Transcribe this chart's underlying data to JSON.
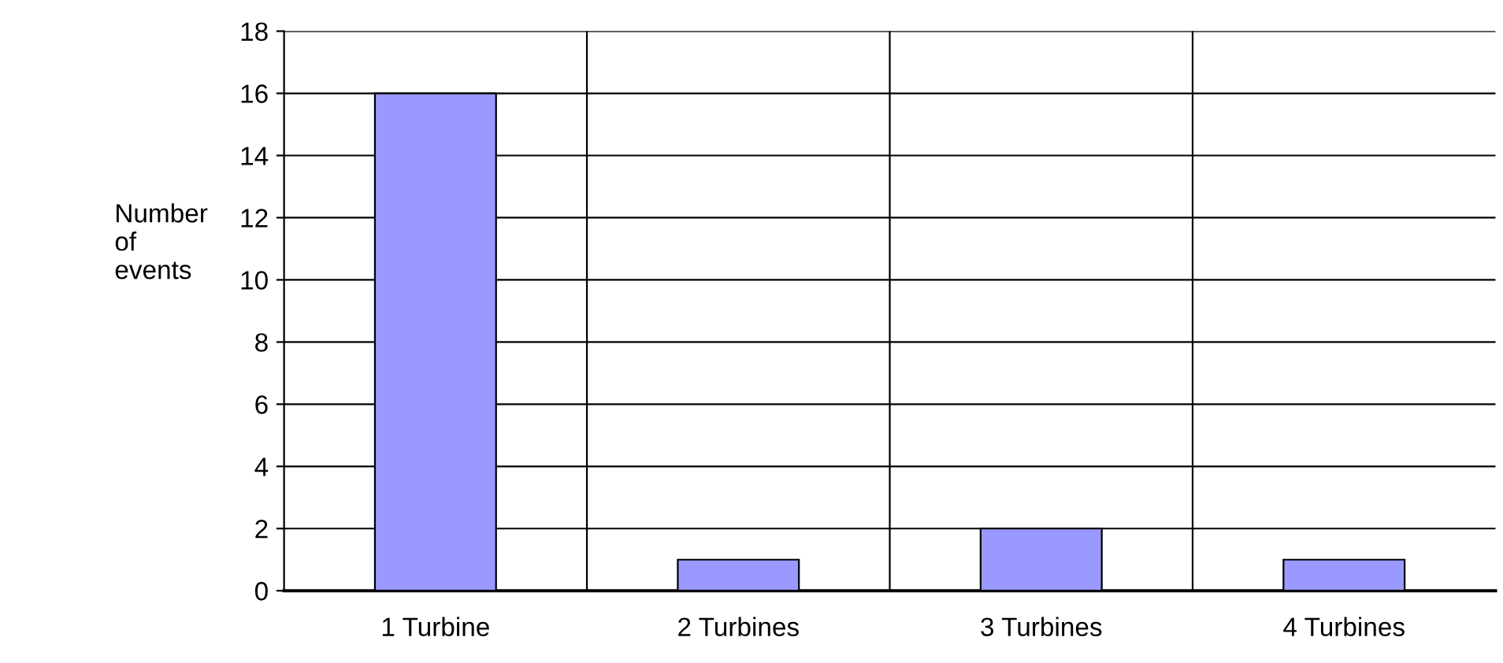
{
  "chart_data": {
    "type": "bar",
    "ylabel": "Number\nof\nevents",
    "categories": [
      "1 Turbine",
      "2 Turbines",
      "3 Turbines",
      "4 Turbines"
    ],
    "values": [
      16,
      1,
      2,
      1
    ],
    "color": "#9999ff",
    "ylim": [
      0,
      18
    ],
    "yticks": [
      0,
      2,
      4,
      6,
      8,
      10,
      12,
      14,
      16,
      18
    ],
    "grid": true,
    "legend": false
  }
}
